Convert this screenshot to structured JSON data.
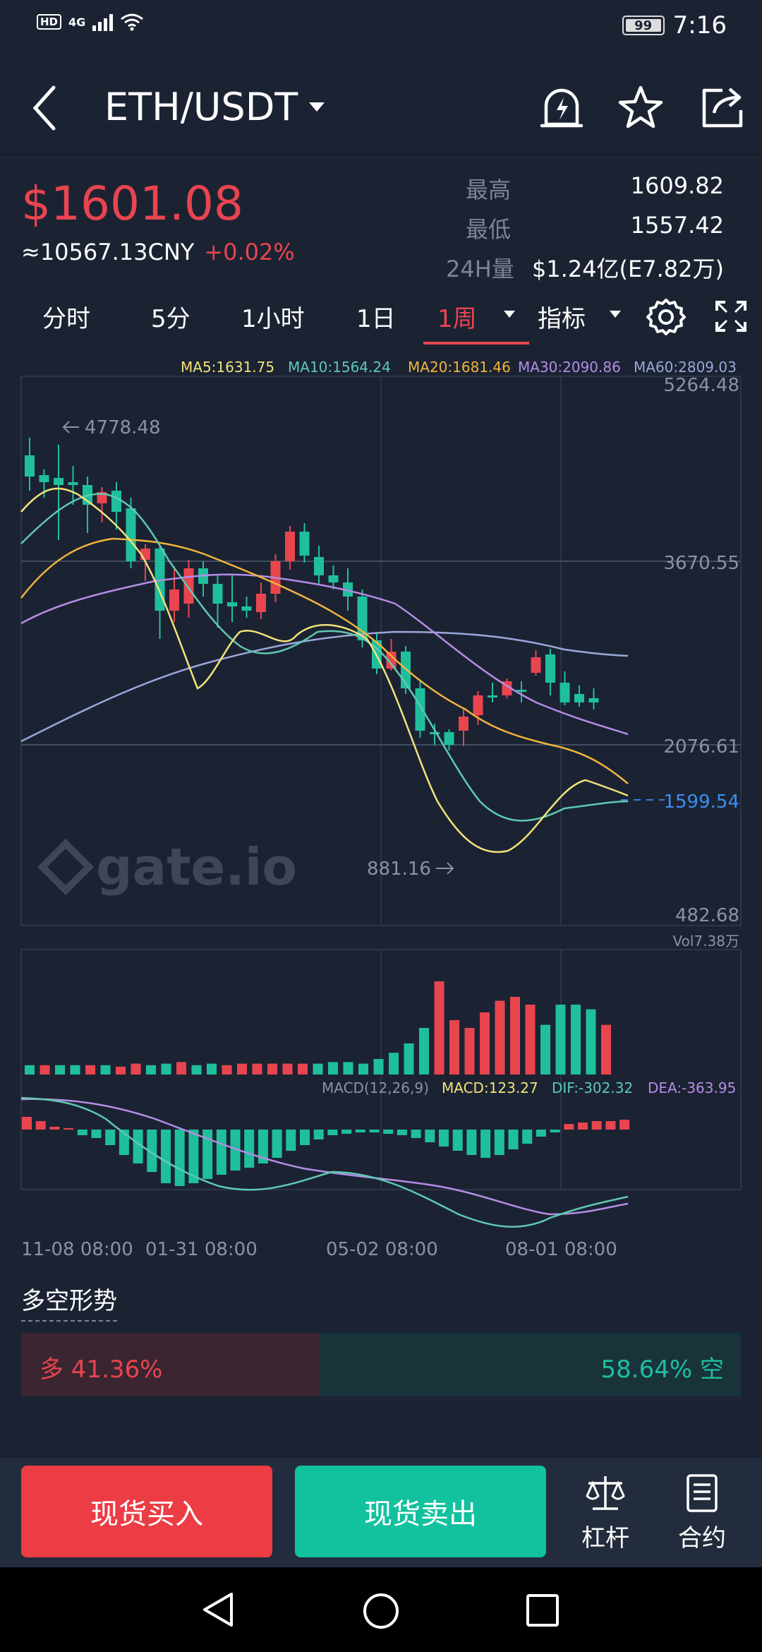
{
  "status_bar": {
    "network": "4G",
    "hd": "HD",
    "battery": "99",
    "time": "7:16"
  },
  "header": {
    "pair": "ETH/USDT"
  },
  "ticker": {
    "price": "$1601.08",
    "cny": "≈10567.13CNY",
    "change": "+0.02%",
    "high_label": "最高",
    "high_value": "1609.82",
    "low_label": "最低",
    "low_value": "1557.42",
    "vol_label": "24H量",
    "vol_value": "$1.24亿(E7.82万)"
  },
  "tabs": [
    {
      "label": "分时"
    },
    {
      "label": "5分"
    },
    {
      "label": "1小时"
    },
    {
      "label": "1日"
    },
    {
      "label": "1周"
    },
    {
      "label": "指标"
    }
  ],
  "colors": {
    "up": "#e8454f",
    "down": "#1fbf9c",
    "bg": "#1b2333",
    "ma5": "#f2e27a",
    "ma10": "#5fc9b2",
    "ma20": "#f1b53c",
    "ma30": "#b58ce6",
    "ma60": "#9aa7d8"
  },
  "chart": {
    "ma_legend": [
      {
        "text": "MA5:1631.75",
        "color": "#f2e27a"
      },
      {
        "text": "MA10:1564.24",
        "color": "#5fc9b2"
      },
      {
        "text": "MA20:1681.46",
        "color": "#f1b53c"
      },
      {
        "text": "MA30:2090.86",
        "color": "#b58ce6"
      },
      {
        "text": "MA60:2809.03",
        "color": "#9aa7d8"
      }
    ],
    "y_ticks": [
      "5264.48",
      "3670.55",
      "2076.61",
      "482.68"
    ],
    "current_price": "1599.54",
    "high_marker": "4778.48",
    "low_marker": "881.16",
    "watermark": "gate.io",
    "vol_label": "Vol7.38万",
    "macd_legend": [
      {
        "text": "MACD(12,26,9)",
        "color": "#8a93a3"
      },
      {
        "text": "MACD:123.27",
        "color": "#f2e27a"
      },
      {
        "text": "DIF:-302.32",
        "color": "#5fc9b2"
      },
      {
        "text": "DEA:-363.95",
        "color": "#b58ce6"
      }
    ],
    "x_ticks": [
      "11-08 08:00",
      "01-31 08:00",
      "05-02 08:00",
      "08-01 08:00"
    ]
  },
  "trend": {
    "title": "多空形势",
    "long": "多 41.36%",
    "short": "58.64% 空",
    "long_pct": 41.36
  },
  "actions": {
    "buy": "现货买入",
    "sell": "现货卖出",
    "leverage": "杠杆",
    "contract": "合约"
  }
}
